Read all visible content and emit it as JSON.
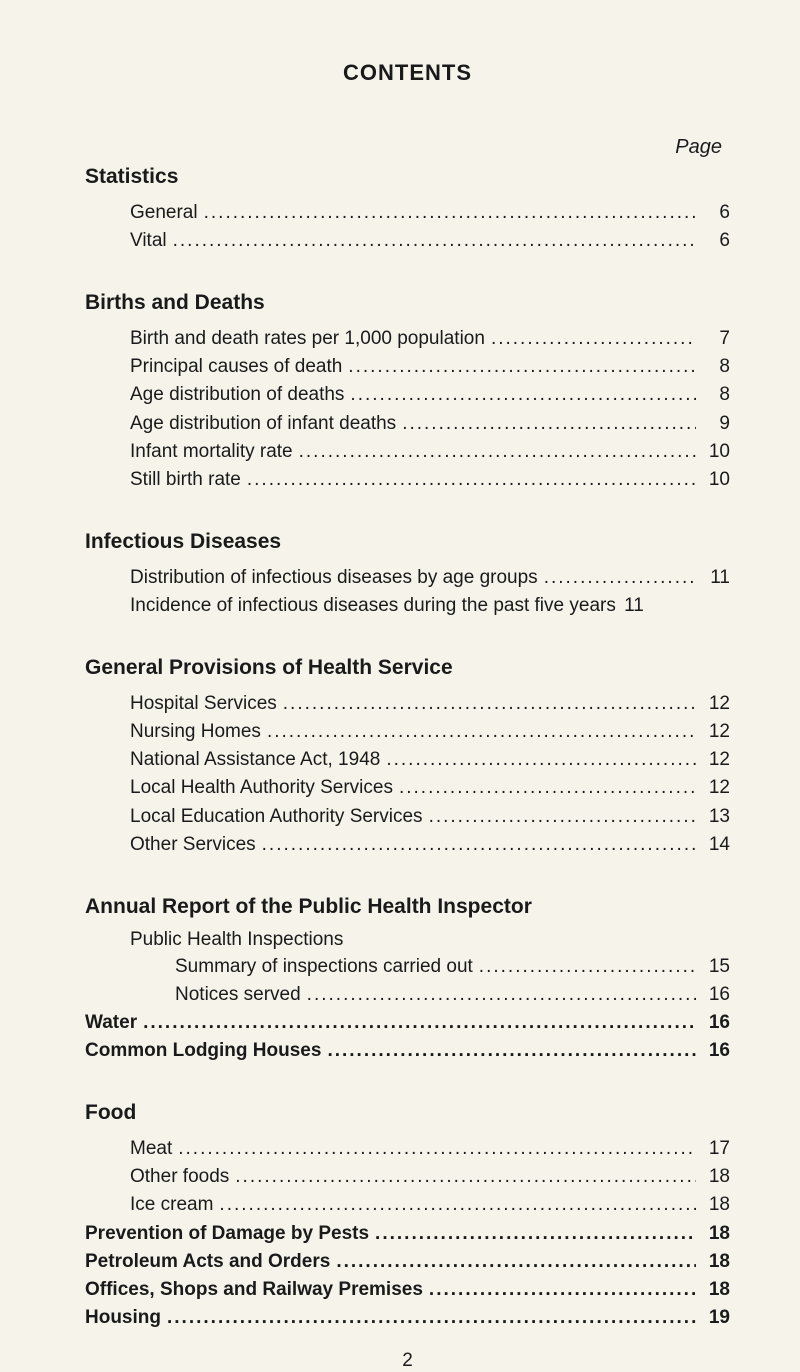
{
  "title": "CONTENTS",
  "page_label": "Page",
  "page_number": "2",
  "dots": "................................................................................................",
  "sections": {
    "statistics": {
      "heading": "Statistics",
      "items": [
        {
          "label": "General",
          "page": "6"
        },
        {
          "label": "Vital",
          "page": "6"
        }
      ]
    },
    "births_deaths": {
      "heading": "Births and Deaths",
      "items": [
        {
          "label": "Birth and death rates per 1,000 population",
          "page": "7"
        },
        {
          "label": "Principal causes of death",
          "page": "8"
        },
        {
          "label": "Age distribution of deaths",
          "page": "8"
        },
        {
          "label": "Age distribution of infant deaths",
          "page": "9"
        },
        {
          "label": "Infant mortality rate",
          "page": "10"
        },
        {
          "label": "Still birth rate",
          "page": "10"
        }
      ]
    },
    "infectious": {
      "heading": "Infectious Diseases",
      "items": [
        {
          "label": "Distribution of infectious diseases by age groups",
          "page": "11"
        },
        {
          "label": "Incidence of infectious diseases during the past five years",
          "page": "11"
        }
      ]
    },
    "general_provisions": {
      "heading": "General Provisions of Health Service",
      "items": [
        {
          "label": "Hospital Services",
          "page": "12"
        },
        {
          "label": "Nursing Homes",
          "page": "12"
        },
        {
          "label": "National Assistance Act, 1948",
          "page": "12"
        },
        {
          "label": "Local Health Authority Services",
          "page": "12"
        },
        {
          "label": "Local Education Authority Services",
          "page": "13"
        },
        {
          "label": "Other Services",
          "page": "14"
        }
      ]
    },
    "annual_report": {
      "heading": "Annual Report of the Public Health Inspector",
      "sub_heading": "Public Health Inspections",
      "nested": [
        {
          "label": "Summary of inspections carried out",
          "page": "15"
        },
        {
          "label": "Notices served",
          "page": "16"
        }
      ],
      "bold_items": [
        {
          "label": "Water",
          "page": "16"
        },
        {
          "label": "Common Lodging Houses",
          "page": "16"
        }
      ]
    },
    "food": {
      "heading": "Food",
      "items": [
        {
          "label": "Meat",
          "page": "17"
        },
        {
          "label": "Other foods",
          "page": "18"
        },
        {
          "label": "Ice cream",
          "page": "18"
        }
      ],
      "bold_items": [
        {
          "label": "Prevention of Damage by Pests",
          "page": "18"
        },
        {
          "label": "Petroleum Acts and Orders",
          "page": "18"
        },
        {
          "label": "Offices, Shops and Railway Premises",
          "page": "18"
        },
        {
          "label": "Housing",
          "page": "19"
        }
      ]
    }
  }
}
